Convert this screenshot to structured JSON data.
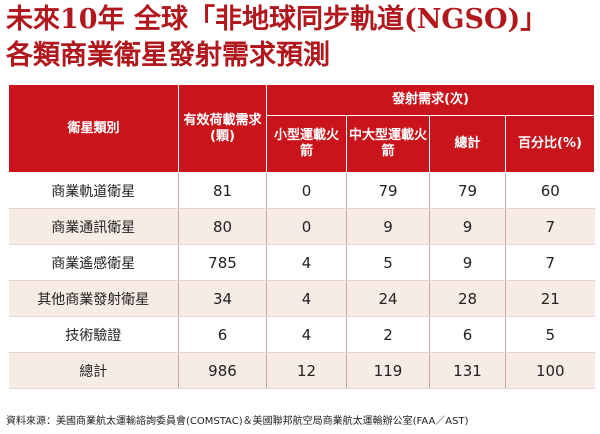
{
  "title": {
    "line1": "未來10年 全球「非地球同步軌道(NGSO)」",
    "line2": "各類商業衛星發射需求預測"
  },
  "table": {
    "header": {
      "category": "衛星類別",
      "payload_demand": "有效荷載需求(顆)",
      "launch_demand": "發射需求(次)",
      "small": "小型運載火箭",
      "medium_large": "中大型運載火箭",
      "total": "總計",
      "percent": "百分比(%)"
    },
    "rows": [
      {
        "category": "商業軌道衛星",
        "payload": "81",
        "small": "0",
        "medium_large": "79",
        "total": "79",
        "percent": "60"
      },
      {
        "category": "商業通訊衛星",
        "payload": "80",
        "small": "0",
        "medium_large": "9",
        "total": "9",
        "percent": "7"
      },
      {
        "category": "商業遙感衛星",
        "payload": "785",
        "small": "4",
        "medium_large": "5",
        "total": "9",
        "percent": "7"
      },
      {
        "category": "其他商業發射衛星",
        "payload": "34",
        "small": "4",
        "medium_large": "24",
        "total": "28",
        "percent": "21"
      },
      {
        "category": "技術驗證",
        "payload": "6",
        "small": "4",
        "medium_large": "2",
        "total": "6",
        "percent": "5"
      },
      {
        "category": "總計",
        "payload": "986",
        "small": "12",
        "medium_large": "119",
        "total": "131",
        "percent": "100"
      }
    ]
  },
  "source": "資料來源：美國商業航太運輸諮詢委員會(COMSTAC)＆美國聯邦航空局商業航太運輸辦公室(FAA／AST)",
  "colors": {
    "title": "#b0181e",
    "header_bg": "#c9141c",
    "stripe_bg": "#f7ebe5"
  }
}
